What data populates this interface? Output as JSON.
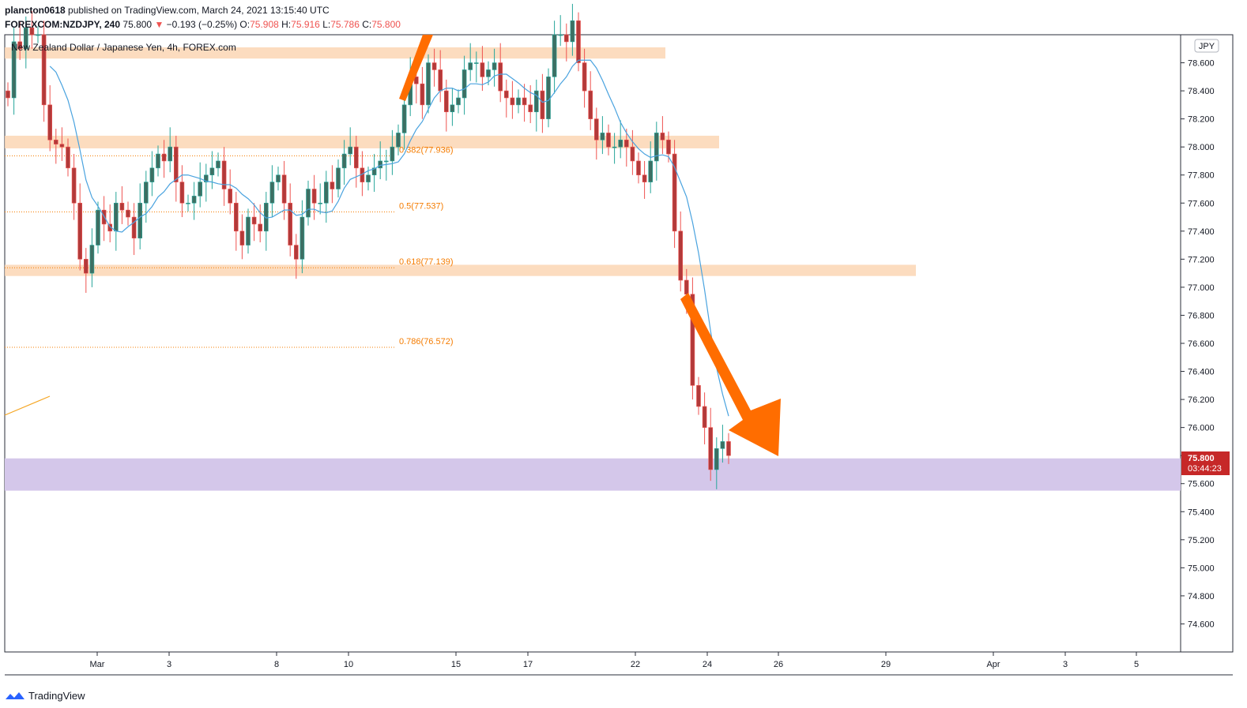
{
  "header": {
    "publisher": "plancton0618",
    "published_text": "published on TradingView.com, March 24, 2021 13:15:40 UTC",
    "symbol": "FOREXCOM:NZDJPY, 240",
    "last": "75.800",
    "change_arrow": "▼",
    "change": "−0.193 (−0.25%)",
    "o_label": "O:",
    "o_val": "75.908",
    "h_label": "H:",
    "h_val": "75.916",
    "l_label": "L:",
    "l_val": "75.786",
    "c_label": "C:",
    "c_val": "75.800",
    "instrument_title": "New Zealand Dollar / Japanese Yen, 4h, FOREX.com"
  },
  "footer": {
    "brand": "TradingView",
    "logo_icon": "tradingview-logo-icon"
  },
  "colors": {
    "up": "#26a69a",
    "down": "#ef5350",
    "candle_body_up": "#3d6f63",
    "candle_body_down": "#b23a3a",
    "ma": "#4aa3df",
    "zone": "#fcd6b4",
    "support_zone": "#d4c7ea",
    "fib": "#f57c00",
    "arrow": "#ff6d00",
    "price_badge": "#c62828"
  },
  "chart_data": {
    "type": "candlestick",
    "currency_label": "JPY",
    "ylim": [
      74.4,
      78.8
    ],
    "y_ticks": [
      "78.600",
      "78.400",
      "78.200",
      "78.000",
      "77.800",
      "77.600",
      "77.400",
      "77.200",
      "77.000",
      "76.800",
      "76.600",
      "76.400",
      "76.200",
      "76.000",
      "75.800",
      "75.600",
      "75.400",
      "75.200",
      "75.000",
      "74.800",
      "74.600"
    ],
    "x_ticks": [
      "Mar",
      "3",
      "8",
      "10",
      "15",
      "17",
      "22",
      "24",
      "26",
      "29",
      "Apr",
      "3",
      "5"
    ],
    "last_price": "75.800",
    "countdown": "03:44:23",
    "fib_levels": [
      {
        "label": "0.382(77.936)",
        "value": 77.936
      },
      {
        "label": "0.5(77.537)",
        "value": 77.537
      },
      {
        "label": "0.618(77.139)",
        "value": 77.139
      },
      {
        "label": "0.786(76.572)",
        "value": 76.572
      }
    ],
    "resistance_zones": [
      {
        "from": 78.63,
        "to": 78.71
      },
      {
        "from": 77.99,
        "to": 78.08
      },
      {
        "from": 77.08,
        "to": 77.16
      }
    ],
    "support_zone": {
      "from": 75.55,
      "to": 75.78
    },
    "closes": [
      78.35,
      78.75,
      78.7,
      78.85,
      78.8,
      78.8,
      78.3,
      78.05,
      78.02,
      78.0,
      77.85,
      77.6,
      77.2,
      77.1,
      77.3,
      77.55,
      77.45,
      77.4,
      77.6,
      77.55,
      77.5,
      77.35,
      77.6,
      77.75,
      77.85,
      77.95,
      77.9,
      78.0,
      77.75,
      77.6,
      77.6,
      77.65,
      77.75,
      77.8,
      77.85,
      77.9,
      77.7,
      77.6,
      77.4,
      77.3,
      77.5,
      77.45,
      77.4,
      77.6,
      77.75,
      77.8,
      77.6,
      77.3,
      77.2,
      77.5,
      77.7,
      77.6,
      77.6,
      77.75,
      77.7,
      77.85,
      77.95,
      78.0,
      77.85,
      77.75,
      77.8,
      77.85,
      77.9,
      77.9,
      78.0,
      78.1,
      78.3,
      78.5,
      78.45,
      78.3,
      78.6,
      78.55,
      78.4,
      78.25,
      78.3,
      78.35,
      78.55,
      78.6,
      78.6,
      78.5,
      78.55,
      78.6,
      78.4,
      78.35,
      78.3,
      78.35,
      78.3,
      78.25,
      78.4,
      78.2,
      78.5,
      78.8,
      78.8,
      78.75,
      78.9,
      78.6,
      78.4,
      78.2,
      78.05,
      78.1,
      78.0,
      78.0,
      78.05,
      78.0,
      77.9,
      77.8,
      77.75,
      77.9,
      78.1,
      78.05,
      77.95,
      77.4,
      77.05,
      76.95,
      76.3,
      76.15,
      76.0,
      75.7,
      75.85,
      75.9,
      75.8
    ],
    "ma_note": "moving average line",
    "annotations": [
      {
        "type": "arrow",
        "direction": "down",
        "from_index": 119,
        "from_price": 77.0,
        "to_price": 75.85
      },
      {
        "type": "arrow",
        "direction": "up",
        "at_index": 64,
        "price": 78.3
      }
    ]
  }
}
